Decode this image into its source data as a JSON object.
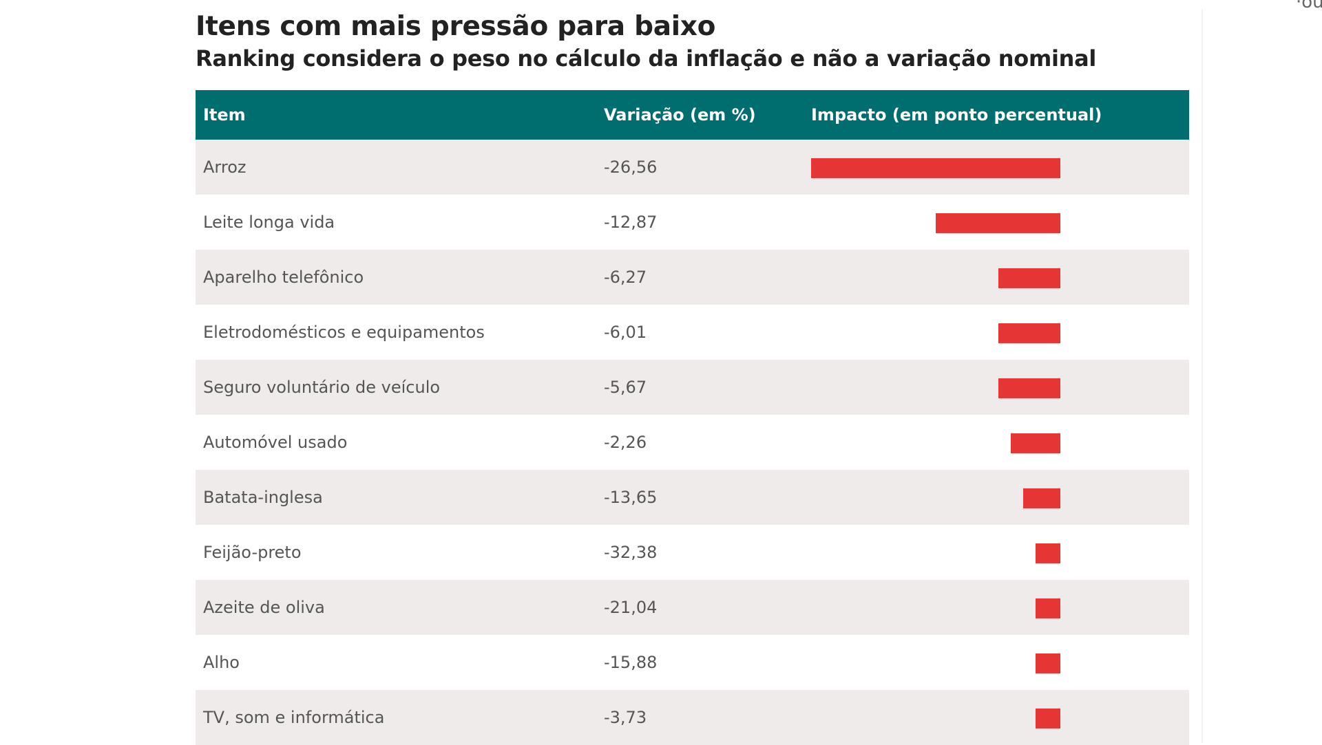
{
  "chart_data": {
    "type": "table",
    "title": "Itens com mais pressão para baixo",
    "subtitle": "Ranking considera o peso no cálculo da inflação e não a variação nominal",
    "columns": [
      "Item",
      "Variação (em %)",
      "Impacto (em ponto percentual)"
    ],
    "bar_color": "#e53535",
    "header_color": "#006d6f",
    "impact_max": 0.2,
    "rows": [
      {
        "item": "Arroz",
        "variacao": "-26,56",
        "impacto": -0.2
      },
      {
        "item": "Leite longa vida",
        "variacao": "-12,87",
        "impacto": -0.1
      },
      {
        "item": "Aparelho telefônico",
        "variacao": "-6,27",
        "impacto": -0.05
      },
      {
        "item": "Eletrodomésticos e equipamentos",
        "variacao": "-6,01",
        "impacto": -0.05
      },
      {
        "item": "Seguro voluntário de veículo",
        "variacao": "-5,67",
        "impacto": -0.05
      },
      {
        "item": "Automóvel usado",
        "variacao": "-2,26",
        "impacto": -0.04
      },
      {
        "item": "Batata-inglesa",
        "variacao": "-13,65",
        "impacto": -0.03
      },
      {
        "item": "Feijão-preto",
        "variacao": "-32,38",
        "impacto": -0.02
      },
      {
        "item": "Azeite de oliva",
        "variacao": "-21,04",
        "impacto": -0.02
      },
      {
        "item": "Alho",
        "variacao": "-15,88",
        "impacto": -0.02
      },
      {
        "item": "TV, som e informática",
        "variacao": "-3,73",
        "impacto": -0.02
      }
    ]
  },
  "corner_text": "·ou"
}
